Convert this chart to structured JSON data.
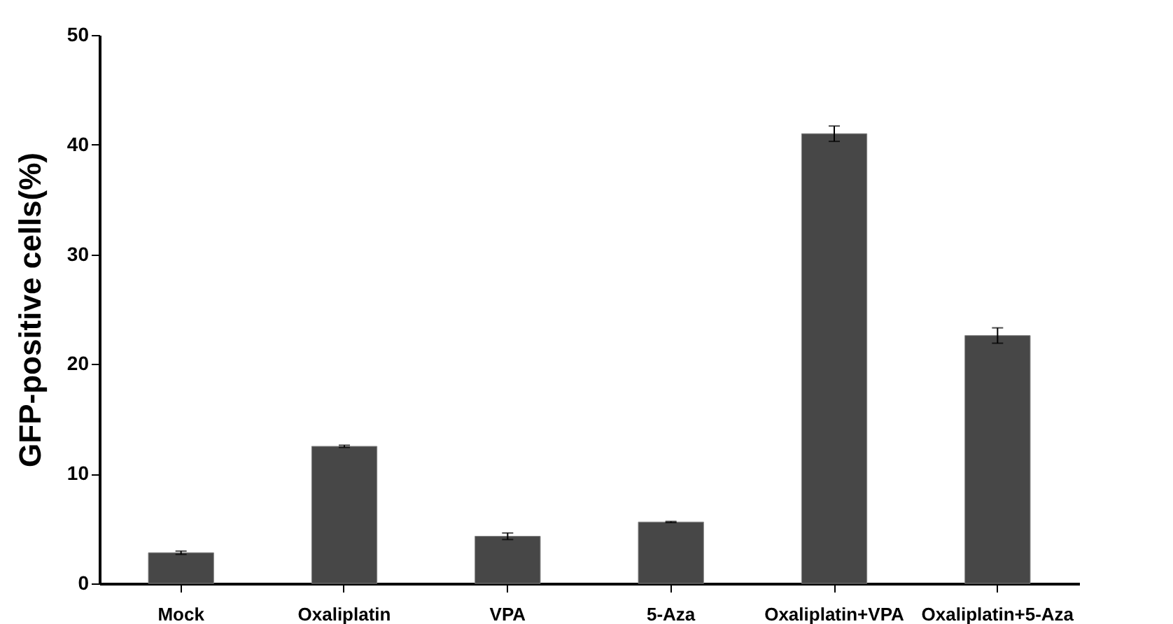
{
  "chart_data": {
    "type": "bar",
    "ylabel": "GFP-positive cells(%)",
    "categories": [
      "Mock",
      "Oxaliplatin",
      "VPA",
      "5-Aza",
      "Oxaliplatin+VPA",
      "Oxaliplatin+5-Aza"
    ],
    "values": [
      2.8,
      12.5,
      4.3,
      5.6,
      41.0,
      22.6
    ],
    "errors": [
      0.15,
      0.1,
      0.3,
      0.05,
      0.7,
      0.7
    ],
    "color": "#474747",
    "ylim": [
      0,
      50
    ],
    "yticks": [
      0,
      10,
      20,
      30,
      40,
      50
    ],
    "grid": false
  }
}
